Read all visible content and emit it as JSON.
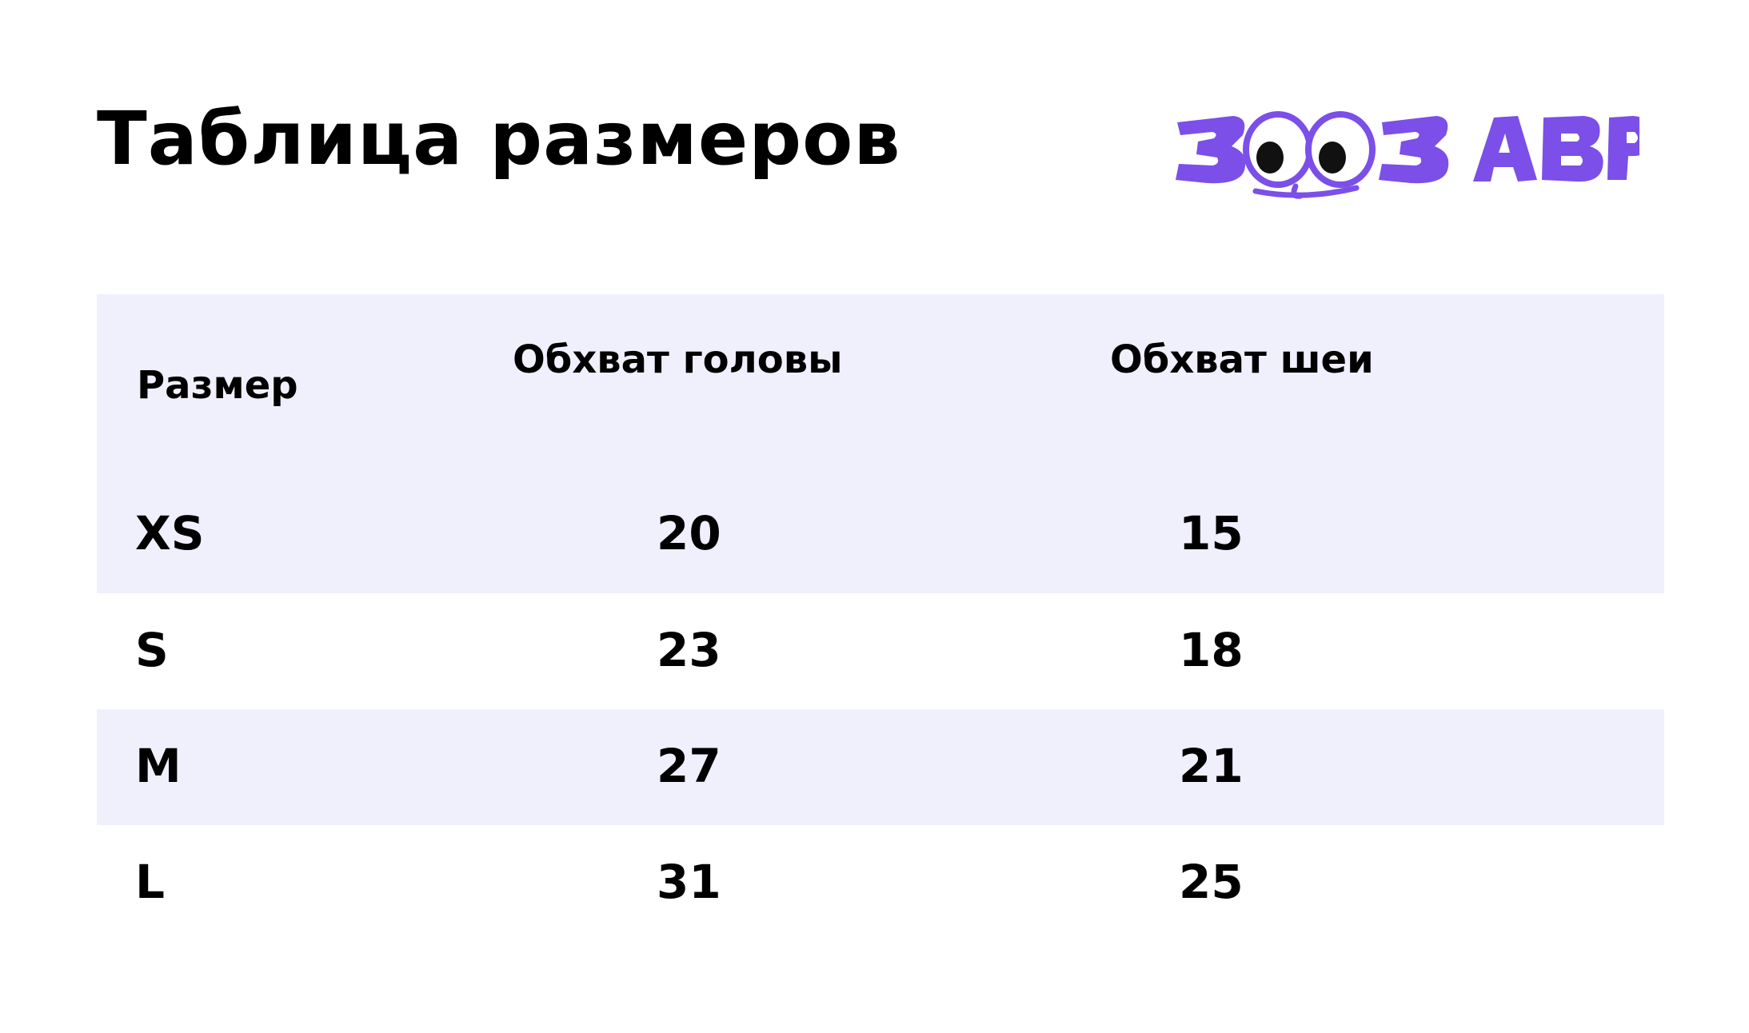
{
  "title": "Таблица размеров",
  "logo": {
    "text": "ЗООЗАВР",
    "color": "#7b4fe8"
  },
  "table": {
    "headers": {
      "size": "Размер",
      "head": "Обхват головы",
      "neck": "Обхват шеи"
    },
    "rows": [
      {
        "size": "XS",
        "head": "20",
        "neck": "15"
      },
      {
        "size": "S",
        "head": "23",
        "neck": "18"
      },
      {
        "size": "M",
        "head": "27",
        "neck": "21"
      },
      {
        "size": "L",
        "head": "31",
        "neck": "25"
      }
    ],
    "shade_color": "#f0effc"
  }
}
